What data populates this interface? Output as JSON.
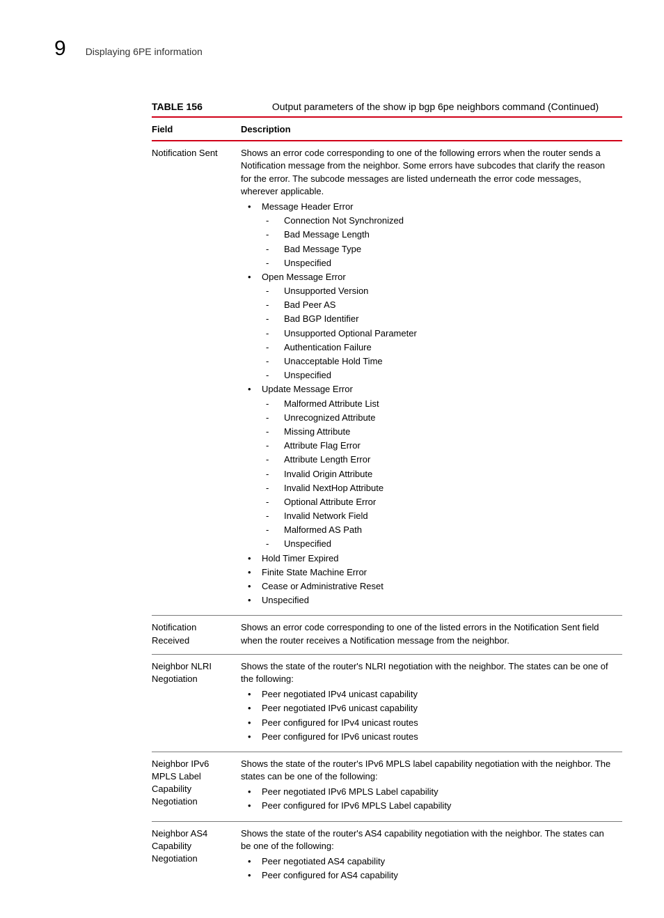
{
  "header": {
    "chapter_number": "9",
    "section_title": "Displaying 6PE information"
  },
  "table": {
    "label": "TABLE 156",
    "title": "Output parameters of the show ip bgp 6pe neighbors command  (Continued)",
    "columns": {
      "field": "Field",
      "description": "Description"
    },
    "rows": [
      {
        "field": "Notification Sent",
        "intro": "Shows an error code corresponding to one of the following errors when the router sends a Notification message from the neighbor. Some errors have subcodes that clarify the reason for the error. The subcode messages are listed underneath the error code messages, wherever applicable.",
        "bullets": [
          {
            "text": "Message Header Error",
            "sub": [
              "Connection Not Synchronized",
              "Bad Message Length",
              "Bad Message Type",
              "Unspecified"
            ]
          },
          {
            "text": "Open Message Error",
            "sub": [
              "Unsupported Version",
              "Bad Peer AS",
              "Bad BGP Identifier",
              "Unsupported Optional Parameter",
              "Authentication Failure",
              "Unacceptable Hold Time",
              "Unspecified"
            ]
          },
          {
            "text": "Update Message Error",
            "sub": [
              "Malformed Attribute List",
              "Unrecognized Attribute",
              "Missing Attribute",
              "Attribute Flag Error",
              "Attribute Length Error",
              "Invalid Origin Attribute",
              "Invalid NextHop Attribute",
              "Optional Attribute Error",
              "Invalid Network Field",
              "Malformed AS Path",
              "Unspecified"
            ]
          },
          {
            "text": "Hold Timer Expired"
          },
          {
            "text": "Finite State Machine Error"
          },
          {
            "text": "Cease or Administrative Reset"
          },
          {
            "text": "Unspecified"
          }
        ]
      },
      {
        "field": "Notification Received",
        "intro": "Shows an error code corresponding to one of the listed errors in the Notification Sent field when the router receives a Notification message from the neighbor."
      },
      {
        "field": "Neighbor NLRI Negotiation",
        "intro": "Shows the state of the router's NLRI negotiation with the neighbor. The states can be one of the following:",
        "bullets": [
          {
            "text": "Peer negotiated IPv4 unicast capability"
          },
          {
            "text": "Peer negotiated IPv6 unicast capability"
          },
          {
            "text": "Peer configured for IPv4 unicast routes"
          },
          {
            "text": "Peer configured for IPv6 unicast routes"
          }
        ]
      },
      {
        "field": "Neighbor IPv6 MPLS Label Capability Negotiation",
        "intro": "Shows the state of the router's IPv6 MPLS label capability negotiation with the neighbor. The states can be one of the following:",
        "bullets": [
          {
            "text": "Peer negotiated IPv6 MPLS Label capability"
          },
          {
            "text": "Peer configured for IPv6 MPLS Label capability"
          }
        ]
      },
      {
        "field": "Neighbor AS4 Capability Negotiation",
        "intro": "Shows the state of the router's AS4 capability negotiation with the neighbor. The states can be one of the following:",
        "bullets": [
          {
            "text": "Peer negotiated AS4 capability"
          },
          {
            "text": "Peer configured for AS4 capability"
          }
        ]
      }
    ]
  },
  "colors": {
    "rule_red": "#d00018",
    "rule_gray": "#7a7a7a",
    "text": "#000000",
    "background": "#ffffff"
  }
}
